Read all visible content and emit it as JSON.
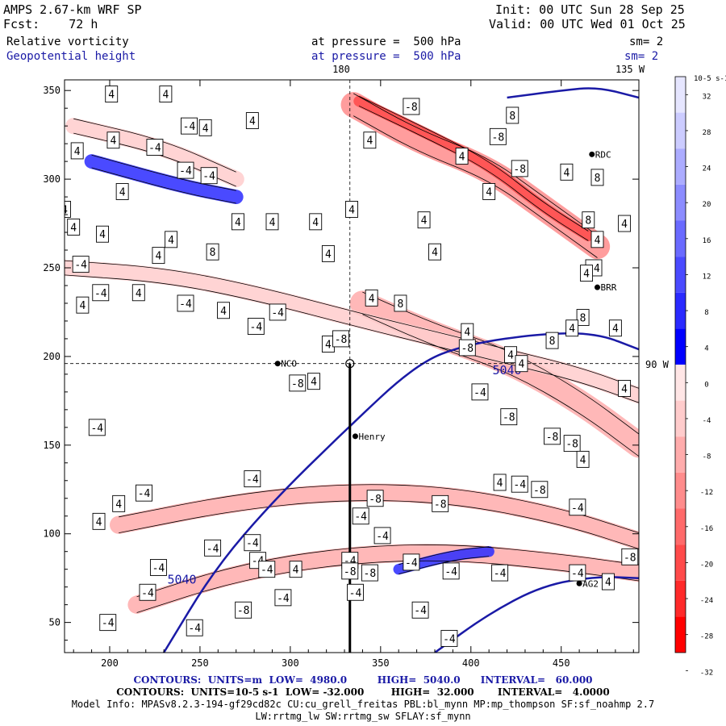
{
  "header": {
    "model": "AMPS 2.67-km WRF SP",
    "init": "Init: 00 UTC Sun 28 Sep 25",
    "fcst": "Fcst:    72 h",
    "valid": "Valid: 00 UTC Wed 01 Oct 25",
    "field1_name": "Relative vorticity",
    "field1_level": "at pressure =  500 hPa",
    "field1_sm": "sm= 2",
    "field2_name": "Geopotential height",
    "field2_level": "at pressure =  500 hPa",
    "field2_sm": "sm= 2"
  },
  "map_labels": {
    "lon_180": "180",
    "lon_135w": "135 W",
    "lon_90w": "90 W",
    "stations": [
      "NCO",
      "Henry",
      "RDC",
      "BRR",
      "AG2"
    ]
  },
  "colorbar": {
    "units": "10-5 s-1",
    "ticks": [
      "32",
      "28",
      "24",
      "20",
      "16",
      "12",
      "8",
      "4",
      "0",
      "-4",
      "-8",
      "-12",
      "-16",
      "-20",
      "-24",
      "-28",
      "-32"
    ],
    "positive_colors": [
      "#0000ff",
      "#2a2aff",
      "#4a4aff",
      "#6a6aff",
      "#8c8cff",
      "#acacff",
      "#ccccff",
      "#e6e6ff"
    ],
    "negative_colors": [
      "#ffe6e6",
      "#ffcccc",
      "#ffacac",
      "#ff8c8c",
      "#ff6a6a",
      "#ff4a4a",
      "#ff2a2a",
      "#ff0000"
    ]
  },
  "footer": {
    "line1": "CONTOURS:  UNITS=m  LOW=  4980.0         HIGH=  5040.0      INTERVAL=   60.000",
    "line2": "CONTOURS:  UNITS=10-5 s-1  LOW= -32.000        HIGH=  32.000       INTERVAL=   4.0000",
    "line3": "Model Info: MPASv8.2.3-194-gf29cd82c CU:cu_grell_freitas PBL:bl_mynn MP:mp_thompson SF:sf_noahmp 2.7",
    "line4": "LW:rrtmg_lw SW:rrtmg_sw SFLAY:sf_mynn"
  },
  "chart_data": {
    "type": "contour-map",
    "title": "Relative vorticity and Geopotential height at 500 hPa",
    "xlim": [
      175,
      493
    ],
    "ylim": [
      33,
      356
    ],
    "xticks": [
      200,
      250,
      300,
      350,
      400,
      450
    ],
    "yticks": [
      50,
      100,
      150,
      200,
      250,
      300,
      350
    ],
    "cross_section_x": 333,
    "crosshair": {
      "x": 333,
      "y": 196
    },
    "height_contours": [
      {
        "label": "5040",
        "points": [
          [
            230,
            33
          ],
          [
            258,
            80
          ],
          [
            290,
            118
          ],
          [
            330,
            158
          ],
          [
            370,
            196
          ],
          [
            398,
            207
          ],
          [
            440,
            213
          ],
          [
            470,
            213
          ],
          [
            493,
            204
          ]
        ],
        "label_at": [
          240,
          72
        ]
      },
      {
        "label": "5040",
        "points": [
          [
            380,
            33
          ],
          [
            410,
            55
          ],
          [
            440,
            71
          ],
          [
            470,
            76
          ],
          [
            493,
            75
          ]
        ],
        "label_at": [
          420,
          190
        ]
      },
      {
        "label": "",
        "points": [
          [
            420,
            346
          ],
          [
            450,
            350
          ],
          [
            470,
            352
          ],
          [
            493,
            346
          ]
        ],
        "label_at": null
      }
    ],
    "stations": [
      {
        "name": "NCO",
        "x": 293,
        "y": 196
      },
      {
        "name": "Henry",
        "x": 336,
        "y": 155
      },
      {
        "name": "RDC",
        "x": 467,
        "y": 314
      },
      {
        "name": "BRR",
        "x": 470,
        "y": 239
      },
      {
        "name": "AG2",
        "x": 460,
        "y": 72
      }
    ],
    "vorticity_bands": [
      {
        "value": -12,
        "points": [
          [
            335,
            342
          ],
          [
            370,
            322
          ],
          [
            410,
            306
          ],
          [
            440,
            284
          ],
          [
            470,
            262
          ]
        ],
        "width": 14
      },
      {
        "value": -20,
        "points": [
          [
            338,
            344
          ],
          [
            375,
            326
          ],
          [
            410,
            308
          ],
          [
            440,
            284
          ],
          [
            465,
            268
          ]
        ],
        "width": 6
      },
      {
        "value": -8,
        "points": [
          [
            340,
            230
          ],
          [
            380,
            212
          ],
          [
            420,
            198
          ],
          [
            460,
            175
          ],
          [
            493,
            150
          ]
        ],
        "width": 14
      },
      {
        "value": -8,
        "points": [
          [
            205,
            105
          ],
          [
            270,
            118
          ],
          [
            330,
            124
          ],
          [
            390,
            122
          ],
          [
            450,
            110
          ],
          [
            493,
            96
          ]
        ],
        "width": 10
      },
      {
        "value": -8,
        "points": [
          [
            215,
            60
          ],
          [
            270,
            78
          ],
          [
            330,
            88
          ],
          [
            390,
            90
          ],
          [
            450,
            84
          ],
          [
            493,
            78
          ]
        ],
        "width": 10
      },
      {
        "value": -4,
        "points": [
          [
            175,
            250
          ],
          [
            230,
            246
          ],
          [
            280,
            236
          ],
          [
            340,
            220
          ],
          [
            380,
            210
          ],
          [
            420,
            200
          ],
          [
            460,
            190
          ],
          [
            493,
            178
          ]
        ],
        "width": 9
      },
      {
        "value": -4,
        "points": [
          [
            180,
            330
          ],
          [
            230,
            318
          ],
          [
            270,
            300
          ]
        ],
        "width": 9
      },
      {
        "value": 4,
        "points": [
          [
            190,
            310
          ],
          [
            240,
            296
          ],
          [
            270,
            290
          ]
        ],
        "width": 8
      },
      {
        "value": 4,
        "points": [
          [
            360,
            80
          ],
          [
            390,
            88
          ],
          [
            410,
            90
          ]
        ],
        "width": 6
      }
    ],
    "vorticity_labels": [
      {
        "v": "4",
        "x": 201,
        "y": 348
      },
      {
        "v": "4",
        "x": 231,
        "y": 348
      },
      {
        "v": "4",
        "x": 279,
        "y": 333
      },
      {
        "v": "4",
        "x": 253,
        "y": 329
      },
      {
        "v": "-4",
        "x": 225,
        "y": 318
      },
      {
        "v": "4",
        "x": 202,
        "y": 322
      },
      {
        "v": "4",
        "x": 182,
        "y": 316
      },
      {
        "v": "-4",
        "x": 242,
        "y": 305
      },
      {
        "v": "4",
        "x": 207,
        "y": 293
      },
      {
        "v": "4",
        "x": 175,
        "y": 283
      },
      {
        "v": "4",
        "x": 196,
        "y": 269
      },
      {
        "v": "4",
        "x": 234,
        "y": 266
      },
      {
        "v": "-4",
        "x": 184,
        "y": 252
      },
      {
        "v": "4",
        "x": 180,
        "y": 273
      },
      {
        "v": "4",
        "x": 227,
        "y": 257
      },
      {
        "v": "8",
        "x": 257,
        "y": 259
      },
      {
        "v": "4",
        "x": 271,
        "y": 276
      },
      {
        "v": "4",
        "x": 290,
        "y": 276
      },
      {
        "v": "4",
        "x": 314,
        "y": 276
      },
      {
        "v": "4",
        "x": 334,
        "y": 283
      },
      {
        "v": "4",
        "x": 374,
        "y": 277
      },
      {
        "v": "4",
        "x": 410,
        "y": 293
      },
      {
        "v": "4",
        "x": 321,
        "y": 258
      },
      {
        "v": "4",
        "x": 380,
        "y": 259
      },
      {
        "v": "-8",
        "x": 367,
        "y": 341
      },
      {
        "v": "8",
        "x": 423,
        "y": 336
      },
      {
        "v": "-8",
        "x": 415,
        "y": 324
      },
      {
        "v": "4",
        "x": 344,
        "y": 322
      },
      {
        "v": "-4",
        "x": 244,
        "y": 330
      },
      {
        "v": "4",
        "x": 395,
        "y": 313
      },
      {
        "v": "-8",
        "x": 427,
        "y": 306
      },
      {
        "v": "4",
        "x": 453,
        "y": 304
      },
      {
        "v": "8",
        "x": 470,
        "y": 301
      },
      {
        "v": "-4",
        "x": 255,
        "y": 302
      },
      {
        "v": "8",
        "x": 465,
        "y": 277
      },
      {
        "v": "4",
        "x": 470,
        "y": 266
      },
      {
        "v": "4",
        "x": 485,
        "y": 275
      },
      {
        "v": "-4",
        "x": 468,
        "y": 250
      },
      {
        "v": "4",
        "x": 464,
        "y": 247
      },
      {
        "v": "-4",
        "x": 195,
        "y": 236
      },
      {
        "v": "4",
        "x": 185,
        "y": 229
      },
      {
        "v": "4",
        "x": 263,
        "y": 226
      },
      {
        "v": "-4",
        "x": 293,
        "y": 225
      },
      {
        "v": "4",
        "x": 216,
        "y": 236
      },
      {
        "v": "-4",
        "x": 242,
        "y": 230
      },
      {
        "v": "-4",
        "x": 281,
        "y": 217
      },
      {
        "v": "4",
        "x": 321,
        "y": 207
      },
      {
        "v": "-8",
        "x": 328,
        "y": 210
      },
      {
        "v": "8",
        "x": 361,
        "y": 230
      },
      {
        "v": "4",
        "x": 345,
        "y": 233
      },
      {
        "v": "-8",
        "x": 398,
        "y": 205
      },
      {
        "v": "4",
        "x": 398,
        "y": 214
      },
      {
        "v": "4",
        "x": 422,
        "y": 201
      },
      {
        "v": "8",
        "x": 445,
        "y": 209
      },
      {
        "v": "8",
        "x": 462,
        "y": 222
      },
      {
        "v": "4",
        "x": 456,
        "y": 216
      },
      {
        "v": "4",
        "x": 480,
        "y": 216
      },
      {
        "v": "-8",
        "x": 304,
        "y": 185
      },
      {
        "v": "4",
        "x": 313,
        "y": 186
      },
      {
        "v": "-4",
        "x": 405,
        "y": 180
      },
      {
        "v": "-8",
        "x": 421,
        "y": 166
      },
      {
        "v": "-4",
        "x": 193,
        "y": 160
      },
      {
        "v": "-4",
        "x": 279,
        "y": 131
      },
      {
        "v": "-8",
        "x": 445,
        "y": 155
      },
      {
        "v": "-8",
        "x": 456,
        "y": 151
      },
      {
        "v": "4",
        "x": 462,
        "y": 142
      },
      {
        "v": "4",
        "x": 416,
        "y": 129
      },
      {
        "v": "-4",
        "x": 427,
        "y": 128
      },
      {
        "v": "-8",
        "x": 438,
        "y": 125
      },
      {
        "v": "-4",
        "x": 459,
        "y": 115
      },
      {
        "v": "4",
        "x": 205,
        "y": 117
      },
      {
        "v": "-4",
        "x": 219,
        "y": 123
      },
      {
        "v": "4",
        "x": 194,
        "y": 107
      },
      {
        "v": "-8",
        "x": 347,
        "y": 120
      },
      {
        "v": "-8",
        "x": 383,
        "y": 117
      },
      {
        "v": "-4",
        "x": 339,
        "y": 110
      },
      {
        "v": "-4",
        "x": 351,
        "y": 99
      },
      {
        "v": "-4",
        "x": 279,
        "y": 95
      },
      {
        "v": "-4",
        "x": 257,
        "y": 92
      },
      {
        "v": "-4",
        "x": 227,
        "y": 81
      },
      {
        "v": "-4",
        "x": 282,
        "y": 85
      },
      {
        "v": "-4",
        "x": 287,
        "y": 80
      },
      {
        "v": "4",
        "x": 303,
        "y": 80
      },
      {
        "v": "-4",
        "x": 333,
        "y": 85
      },
      {
        "v": "-8",
        "x": 333,
        "y": 79
      },
      {
        "v": "-8",
        "x": 344,
        "y": 78
      },
      {
        "v": "-4",
        "x": 367,
        "y": 84
      },
      {
        "v": "-4",
        "x": 389,
        "y": 79
      },
      {
        "v": "-4",
        "x": 416,
        "y": 78
      },
      {
        "v": "-4",
        "x": 459,
        "y": 78
      },
      {
        "v": "4",
        "x": 476,
        "y": 73
      },
      {
        "v": "-8",
        "x": 488,
        "y": 87
      },
      {
        "v": "-4",
        "x": 221,
        "y": 67
      },
      {
        "v": "-4",
        "x": 336,
        "y": 67
      },
      {
        "v": "-4",
        "x": 296,
        "y": 64
      },
      {
        "v": "-8",
        "x": 274,
        "y": 57
      },
      {
        "v": "-4",
        "x": 247,
        "y": 47
      },
      {
        "v": "-4",
        "x": 199,
        "y": 50
      },
      {
        "v": "-4",
        "x": 372,
        "y": 57
      },
      {
        "v": "-4",
        "x": 388,
        "y": 41
      },
      {
        "v": "4",
        "x": 485,
        "y": 182
      },
      {
        "v": "4",
        "x": 428,
        "y": 196
      }
    ]
  }
}
